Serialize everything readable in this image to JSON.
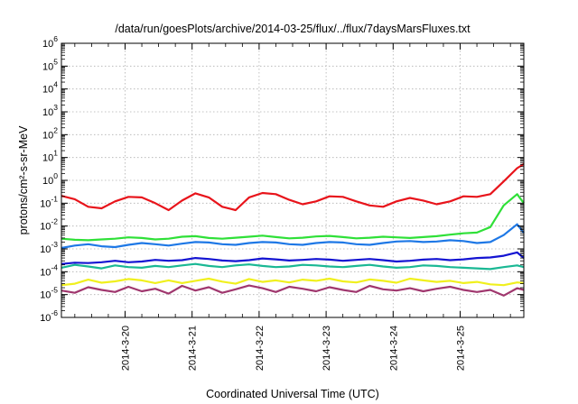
{
  "chart_data": {
    "type": "line",
    "title": "/data/run/goesPlots/archive/2014-03-25/flux/../flux/7daysMarsFluxes.txt",
    "xlabel": "Coordinated Universal Time (UTC)",
    "ylabel": "protons/cm²-s-sr-MeV",
    "yscale": "log",
    "ylim": [
      1e-06,
      1000000.0
    ],
    "xlim": [
      -0.95,
      5.95
    ],
    "x_tick_labels": [
      "2014-3-20",
      "2014-3-21",
      "2014-3-22",
      "2014-3-23",
      "2014-3-24",
      "2014-3-25"
    ],
    "y_tick_exponents": [
      -6,
      -5,
      -4,
      -3,
      -2,
      -1,
      0,
      1,
      2,
      3,
      4,
      5,
      6
    ],
    "grid": true,
    "legend": "none",
    "x": [
      -0.95,
      -0.75,
      -0.55,
      -0.35,
      -0.15,
      0.05,
      0.25,
      0.45,
      0.65,
      0.85,
      1.05,
      1.25,
      1.45,
      1.65,
      1.85,
      2.05,
      2.25,
      2.45,
      2.65,
      2.85,
      3.05,
      3.25,
      3.45,
      3.65,
      3.85,
      4.05,
      4.25,
      4.45,
      4.65,
      4.85,
      5.05,
      5.25,
      5.45,
      5.65,
      5.85,
      5.95
    ],
    "series": [
      {
        "color": "#e8141b",
        "values": [
          0.21,
          0.15,
          0.07,
          0.06,
          0.12,
          0.19,
          0.18,
          0.1,
          0.05,
          0.13,
          0.27,
          0.18,
          0.07,
          0.05,
          0.18,
          0.28,
          0.25,
          0.14,
          0.09,
          0.12,
          0.2,
          0.19,
          0.12,
          0.08,
          0.07,
          0.12,
          0.17,
          0.13,
          0.09,
          0.12,
          0.2,
          0.19,
          0.25,
          0.9,
          3.4,
          5.2
        ]
      },
      {
        "color": "#2fe038",
        "values": [
          0.0028,
          0.0025,
          0.0024,
          0.0026,
          0.0028,
          0.0032,
          0.003,
          0.0026,
          0.0028,
          0.0034,
          0.0036,
          0.003,
          0.0028,
          0.0031,
          0.0034,
          0.0038,
          0.0033,
          0.0029,
          0.0031,
          0.0035,
          0.0037,
          0.0033,
          0.0029,
          0.0031,
          0.0034,
          0.0032,
          0.003,
          0.0033,
          0.0036,
          0.0042,
          0.0048,
          0.0052,
          0.009,
          0.08,
          0.25,
          0.1
        ]
      },
      {
        "color": "#1e78e6",
        "values": [
          0.0011,
          0.0014,
          0.0016,
          0.0013,
          0.0012,
          0.0015,
          0.0018,
          0.0016,
          0.0014,
          0.0017,
          0.002,
          0.0019,
          0.0016,
          0.0015,
          0.0018,
          0.002,
          0.0019,
          0.0016,
          0.0015,
          0.0018,
          0.002,
          0.0019,
          0.0016,
          0.0015,
          0.0018,
          0.0021,
          0.0022,
          0.002,
          0.0021,
          0.0024,
          0.0022,
          0.0018,
          0.002,
          0.004,
          0.012,
          0.005
        ]
      },
      {
        "color": "#1414d2",
        "values": [
          0.00022,
          0.00025,
          0.00024,
          0.00026,
          0.0003,
          0.00026,
          0.00028,
          0.00033,
          0.0003,
          0.00032,
          0.0004,
          0.00036,
          0.00031,
          0.00029,
          0.00032,
          0.00038,
          0.00035,
          0.00031,
          0.00033,
          0.00036,
          0.00034,
          0.0003,
          0.00033,
          0.00036,
          0.00032,
          0.00028,
          0.0003,
          0.00034,
          0.00036,
          0.00032,
          0.00035,
          0.0004,
          0.00042,
          0.0005,
          0.0007,
          0.0004
        ]
      },
      {
        "color": "#1ab894",
        "values": [
          0.00015,
          0.0002,
          0.00017,
          0.00014,
          0.00019,
          0.00016,
          0.00015,
          0.00018,
          0.00016,
          0.00019,
          0.00022,
          0.00018,
          0.00016,
          0.00019,
          0.00021,
          0.00018,
          0.00016,
          0.00017,
          0.0002,
          0.00019,
          0.00017,
          0.00016,
          0.00018,
          0.0002,
          0.00017,
          0.00015,
          0.00016,
          0.00019,
          0.00018,
          0.00016,
          0.00015,
          0.00014,
          0.00013,
          0.00016,
          0.00019,
          0.00016
        ]
      },
      {
        "color": "#f0f01e",
        "values": [
          2.6e-05,
          3e-05,
          4.5e-05,
          3.3e-05,
          3.8e-05,
          4.8e-05,
          4.2e-05,
          3.2e-05,
          4.2e-05,
          3.2e-05,
          4e-05,
          5e-05,
          3.7e-05,
          3e-05,
          4.8e-05,
          3.6e-05,
          4.2e-05,
          3.4e-05,
          4.5e-05,
          4e-05,
          5e-05,
          3.8e-05,
          3.4e-05,
          4.6e-05,
          4e-05,
          3.3e-05,
          5e-05,
          4.2e-05,
          3.6e-05,
          4e-05,
          3.2e-05,
          3.6e-05,
          2.8e-05,
          2.6e-05,
          3.4e-05,
          3.2e-05
        ]
      },
      {
        "color": "#a0376e",
        "values": [
          1.5e-05,
          1.2e-05,
          2.1e-05,
          1.6e-05,
          1.3e-05,
          2.2e-05,
          1.4e-05,
          1.8e-05,
          1.1e-05,
          2.4e-05,
          1.5e-05,
          2.1e-05,
          1.2e-05,
          1.7e-05,
          2.5e-05,
          1.9e-05,
          1.3e-05,
          2.2e-05,
          1.8e-05,
          1.4e-05,
          2.1e-05,
          1.6e-05,
          1.3e-05,
          2.4e-05,
          1.7e-05,
          1.5e-05,
          1.9e-05,
          1.4e-05,
          1.8e-05,
          2.2e-05,
          1.6e-05,
          1.3e-05,
          1.6e-05,
          9e-06,
          1.9e-05,
          1.6e-05
        ]
      }
    ]
  }
}
